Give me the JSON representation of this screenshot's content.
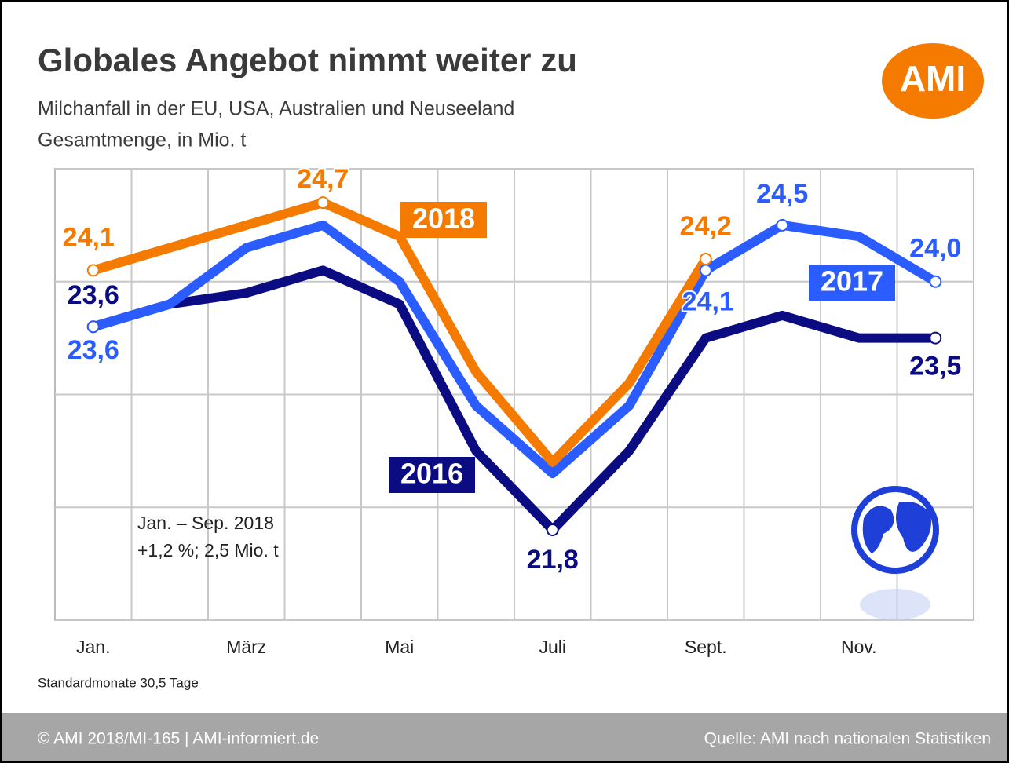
{
  "chart_data": {
    "type": "line",
    "title": "Globales Angebot nimmt weiter zu",
    "subtitle": [
      "Milchanfall in der EU, USA, Australien und Neuseeland",
      "Gesamtmenge, in Mio. t"
    ],
    "categories": [
      "Jan.",
      null,
      "März",
      null,
      "Mai",
      null,
      "Juli",
      null,
      "Sept.",
      null,
      "Nov.",
      null
    ],
    "series": [
      {
        "name": "2016",
        "color": "#0b0b82",
        "values": [
          23.6,
          23.8,
          23.9,
          24.1,
          23.8,
          22.5,
          21.8,
          22.5,
          23.5,
          23.7,
          23.5,
          23.5
        ],
        "value_labels": [
          "23,6",
          null,
          null,
          null,
          null,
          null,
          "21,8",
          null,
          null,
          null,
          null,
          "23,5"
        ]
      },
      {
        "name": "2017",
        "color": "#2b5cff",
        "values": [
          23.6,
          23.8,
          24.3,
          24.5,
          24.0,
          22.9,
          22.3,
          22.9,
          24.1,
          24.5,
          24.4,
          24.0
        ],
        "value_labels": [
          "23,6",
          null,
          null,
          null,
          null,
          null,
          null,
          null,
          "24,1",
          "24,5",
          null,
          "24,0"
        ]
      },
      {
        "name": "2018",
        "color": "#f47a00",
        "values": [
          24.1,
          24.3,
          24.5,
          24.7,
          24.4,
          23.2,
          22.4,
          23.1,
          24.2,
          null,
          null,
          null
        ],
        "value_labels": [
          "24,1",
          null,
          null,
          "24,7",
          null,
          null,
          null,
          null,
          "24,2",
          null,
          null,
          null
        ]
      }
    ],
    "ylim": [
      21,
      25
    ],
    "yticks": [
      21,
      22,
      23,
      24,
      25
    ],
    "grid": true,
    "annotations": [
      "Jan. – Sep. 2018",
      "+1,2 %; 2,5 Mio. t"
    ],
    "footnote": "Standardmonate 30,5 Tage",
    "logo": "AMI",
    "footer": {
      "left": "© AMI 2018/MI-165 | AMI-informiert.de",
      "right": "Quelle: AMI nach nationalen Statistiken"
    }
  }
}
